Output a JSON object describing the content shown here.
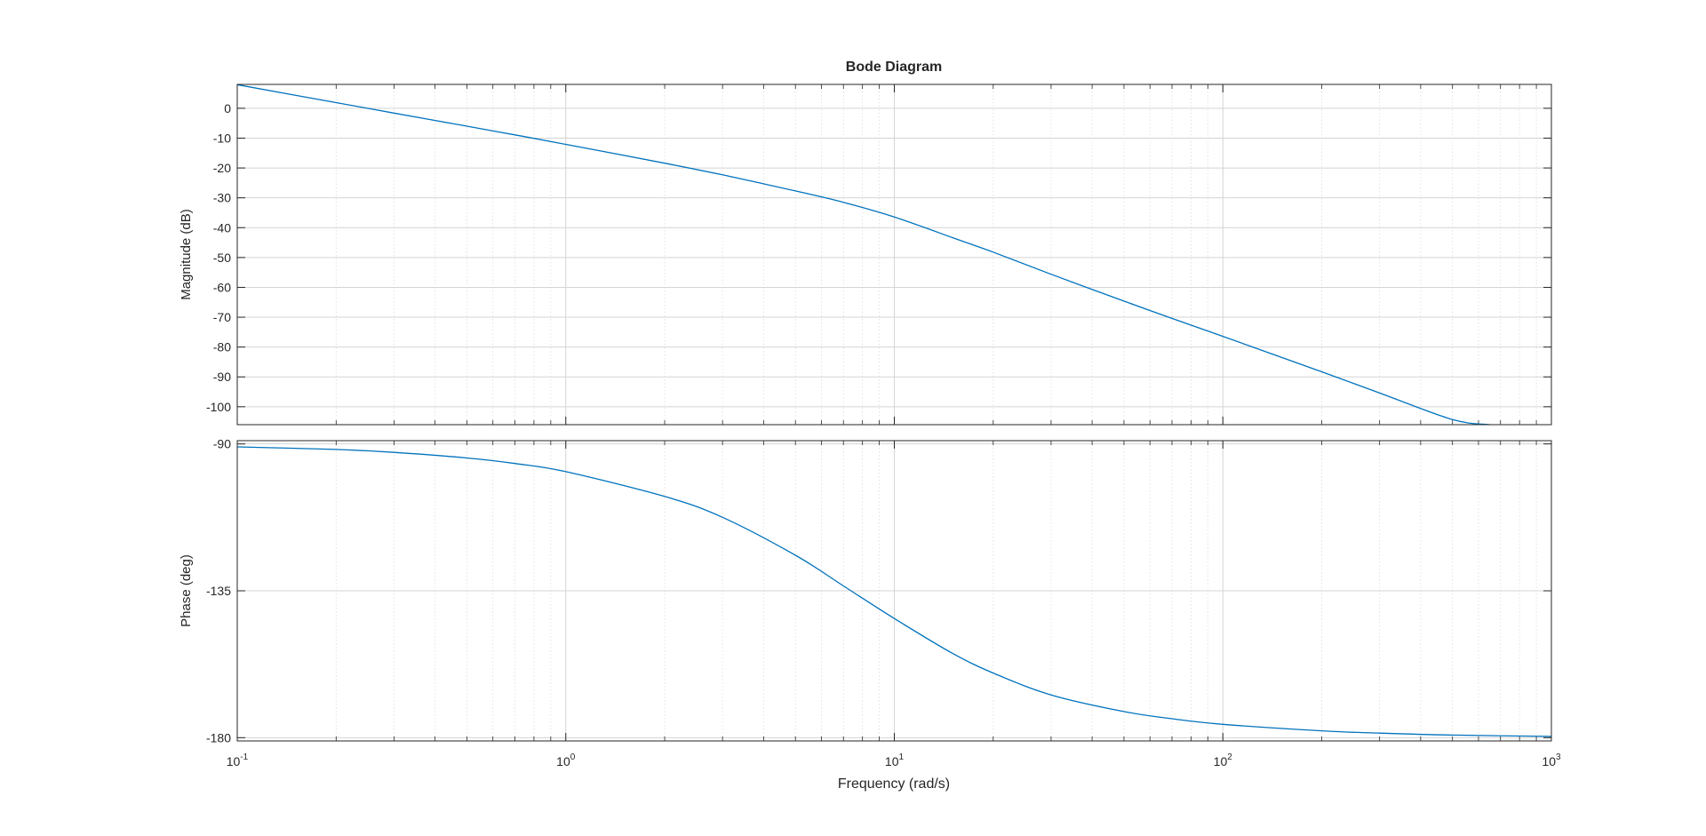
{
  "chart_data": {
    "type": "line",
    "title": "Bode Diagram",
    "xlabel": "Frequency  (rad/s)",
    "xscale": "log",
    "xlim": [
      0.1,
      1000
    ],
    "x_ticks": [
      {
        "value": 0.1,
        "base": "10",
        "exp": "-1"
      },
      {
        "value": 1,
        "base": "10",
        "exp": "0"
      },
      {
        "value": 10,
        "base": "10",
        "exp": "1"
      },
      {
        "value": 100,
        "base": "10",
        "exp": "2"
      },
      {
        "value": 1000,
        "base": "10",
        "exp": "3"
      }
    ],
    "grid": true,
    "line_color": "#0072BD",
    "magnitude": {
      "ylabel": "Magnitude (dB)",
      "ylim": [
        -106,
        8
      ],
      "y_ticks": [
        0,
        -10,
        -20,
        -30,
        -40,
        -50,
        -60,
        -70,
        -80,
        -90,
        -100
      ],
      "y_tick_labels": [
        "0",
        "-10",
        "-20",
        "-30",
        "-40",
        "-50",
        "-60",
        "-70",
        "-80",
        "-90",
        "-100"
      ],
      "x": [
        0.1,
        0.2,
        0.3,
        0.5,
        0.7,
        1,
        2,
        3,
        5,
        7,
        10,
        15,
        20,
        30,
        50,
        70,
        100,
        200,
        300,
        500,
        650
      ],
      "y": [
        7.9,
        1.9,
        -1.6,
        -6.0,
        -8.9,
        -12.1,
        -18.4,
        -22.3,
        -27.7,
        -31.5,
        -36.4,
        -43.3,
        -48.2,
        -55.6,
        -64.6,
        -70.4,
        -76.4,
        -88.3,
        -95.4,
        -104.3,
        -106
      ]
    },
    "phase": {
      "ylabel": "Phase (deg)",
      "ylim": [
        -181,
        -89
      ],
      "y_ticks": [
        -90,
        -135,
        -180
      ],
      "y_tick_labels": [
        "-90",
        "-135",
        "-180"
      ],
      "x": [
        0.1,
        0.2,
        0.3,
        0.5,
        0.7,
        1,
        2,
        3,
        5,
        7,
        10,
        15,
        20,
        30,
        50,
        70,
        100,
        200,
        300,
        500,
        1000
      ],
      "y": [
        -90.9,
        -91.7,
        -92.6,
        -94.3,
        -96.0,
        -98.5,
        -106.1,
        -112.5,
        -124.1,
        -133.5,
        -143.5,
        -154.1,
        -160.2,
        -166.9,
        -172.0,
        -174.2,
        -175.9,
        -177.9,
        -178.6,
        -179.2,
        -179.6
      ]
    }
  }
}
